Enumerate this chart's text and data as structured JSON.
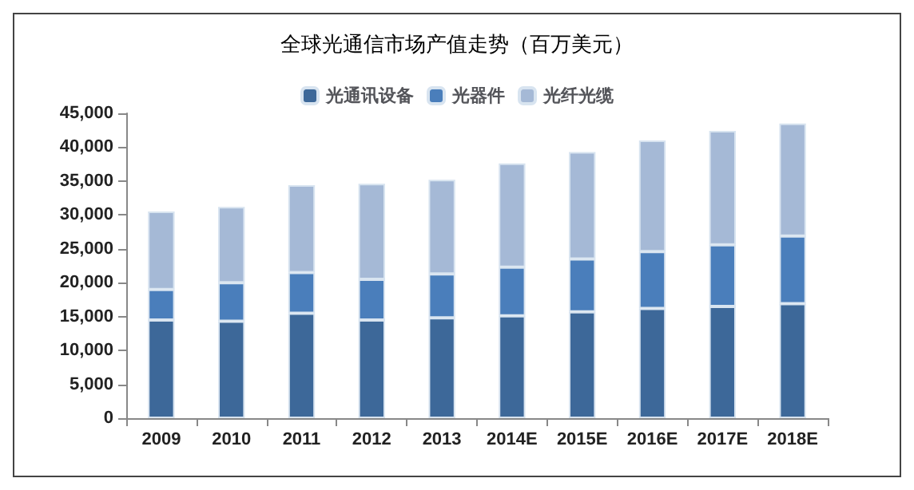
{
  "chart_data": {
    "type": "bar",
    "title": "全球光通信市场产值走势（百万美元）",
    "stacked": true,
    "categories": [
      "2009",
      "2010",
      "2011",
      "2012",
      "2013",
      "2014E",
      "2015E",
      "2016E",
      "2017E",
      "2018E"
    ],
    "series": [
      {
        "name": "光通讯设备",
        "color": "#3d6899",
        "values": [
          14500,
          14300,
          15500,
          14500,
          14800,
          15100,
          15700,
          16200,
          16500,
          16900
        ]
      },
      {
        "name": "光器件",
        "color": "#4a7ebb",
        "values": [
          4500,
          5700,
          6000,
          6000,
          6500,
          7200,
          7800,
          8400,
          9100,
          10000
        ]
      },
      {
        "name": "光纤光缆",
        "color": "#a5b9d6",
        "values": [
          11500,
          11200,
          12900,
          14100,
          13900,
          15300,
          15800,
          16400,
          16800,
          16600
        ]
      }
    ],
    "ylim": [
      0,
      45000
    ],
    "yticks": [
      0,
      {
        "value": 5000,
        "label": "5,000"
      },
      {
        "value": 10000,
        "label": "10,000"
      },
      {
        "value": 15000,
        "label": "15,000"
      },
      {
        "value": 20000,
        "label": "20,000"
      },
      {
        "value": 25000,
        "label": "25,000"
      },
      {
        "value": 30000,
        "label": "30,000"
      },
      {
        "value": 35000,
        "label": "35,000"
      },
      {
        "value": 40000,
        "label": "40,000"
      },
      {
        "value": 45000,
        "label": "45,000"
      }
    ],
    "grid": false,
    "legend": "top"
  }
}
